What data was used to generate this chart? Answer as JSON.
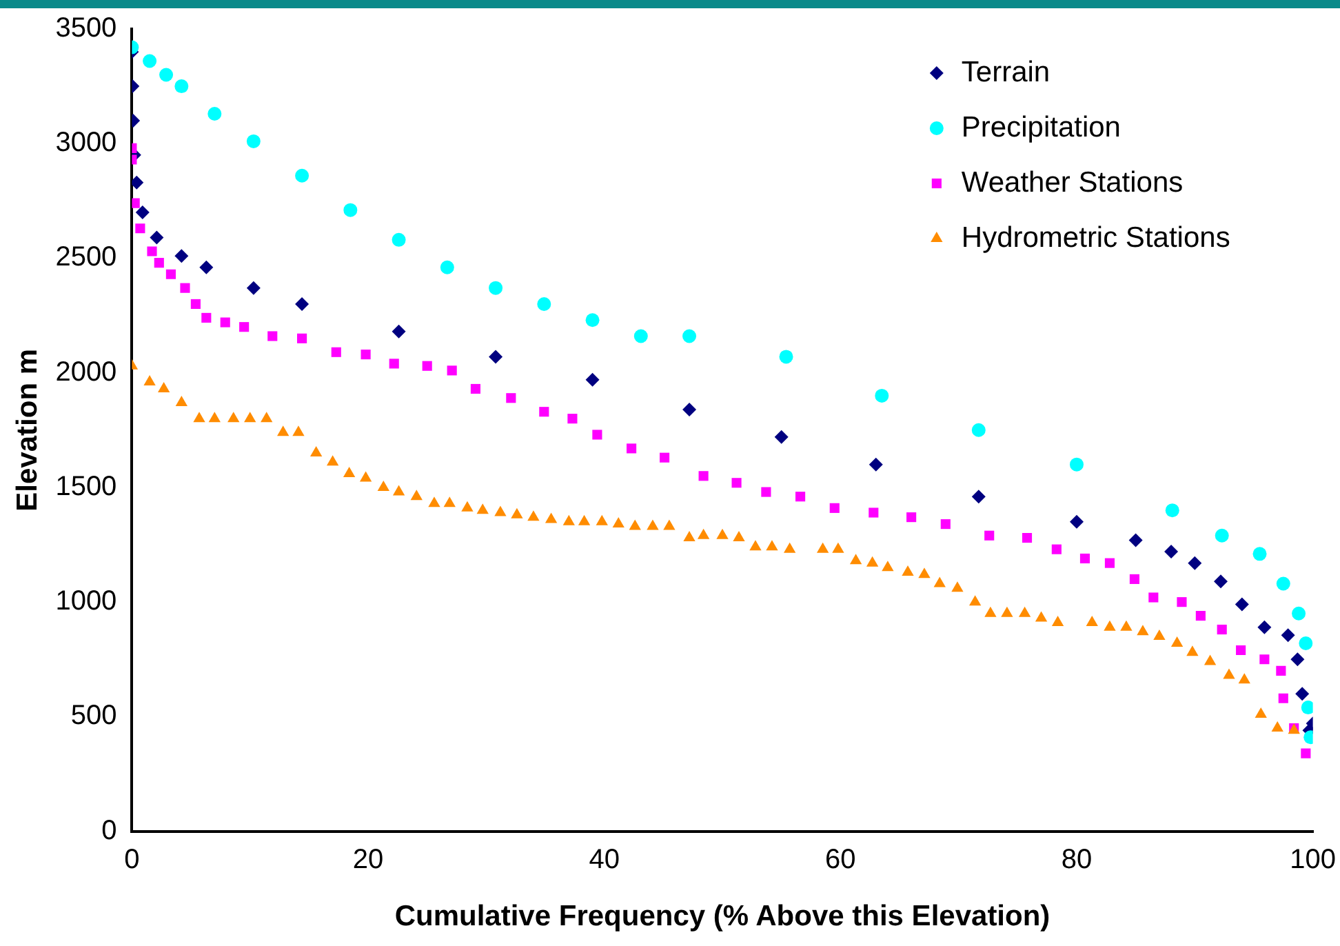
{
  "chart_data": {
    "type": "scatter",
    "xlabel": "Cumulative Frequency (% Above this Elevation)",
    "ylabel": "Elevation m",
    "xlim": [
      0,
      100
    ],
    "xticks": [
      0,
      20,
      40,
      60,
      80,
      100
    ],
    "ylim": [
      0,
      3500
    ],
    "yticks": [
      0,
      500,
      1000,
      1500,
      2000,
      2500,
      3000,
      3500
    ],
    "grid": false,
    "legend": "top right",
    "series": [
      {
        "name": "Terrain",
        "color": "#000080",
        "marker": "diamond",
        "x": [
          0,
          0.05,
          0.1,
          0.2,
          0.4,
          0.9,
          2.1,
          4.2,
          6.3,
          10.3,
          14.4,
          22.6,
          30.8,
          39,
          47.2,
          55,
          63,
          71.7,
          80,
          85,
          88,
          90,
          92.2,
          94,
          95.9,
          97.9,
          98.7,
          99.1,
          99.7,
          100
        ],
        "values": [
          3400,
          3250,
          3100,
          2950,
          2830,
          2700,
          2590,
          2510,
          2460,
          2370,
          2300,
          2180,
          2070,
          1970,
          1840,
          1720,
          1600,
          1460,
          1350,
          1270,
          1220,
          1170,
          1090,
          990,
          890,
          855,
          750,
          600,
          440,
          470
        ]
      },
      {
        "name": "Precipitation",
        "color": "#00ffff",
        "marker": "circle",
        "x": [
          0,
          1.5,
          2.9,
          4.2,
          7,
          10.3,
          14.4,
          18.5,
          22.6,
          26.7,
          30.8,
          34.9,
          39,
          43.1,
          47.2,
          55.4,
          63.5,
          71.7,
          80,
          88.1,
          92.3,
          95.5,
          97.5,
          98.8,
          99.4,
          99.6,
          99.8
        ],
        "values": [
          3420,
          3360,
          3300,
          3250,
          3130,
          3010,
          2860,
          2710,
          2580,
          2460,
          2370,
          2300,
          2230,
          2160,
          2160,
          2070,
          1900,
          1750,
          1600,
          1400,
          1290,
          1210,
          1080,
          950,
          820,
          540,
          410
        ]
      },
      {
        "name": "Weather Stations",
        "color": "#ff00ff",
        "marker": "square",
        "x": [
          0,
          0,
          0.25,
          0.7,
          1.7,
          2.3,
          3.3,
          4.5,
          5.4,
          6.3,
          7.9,
          9.5,
          11.9,
          14.4,
          17.3,
          19.8,
          22.2,
          25,
          27.1,
          29.1,
          32.1,
          34.9,
          37.3,
          39.4,
          42.3,
          45.1,
          48.4,
          51.2,
          53.7,
          56.6,
          59.5,
          62.8,
          66,
          68.9,
          72.6,
          75.8,
          78.3,
          80.7,
          82.8,
          84.9,
          86.5,
          88.9,
          90.5,
          92.3,
          93.9,
          95.9,
          97.3,
          97.5,
          98.4,
          99.4
        ],
        "values": [
          2980,
          2930,
          2740,
          2630,
          2530,
          2480,
          2430,
          2370,
          2300,
          2240,
          2220,
          2200,
          2160,
          2150,
          2090,
          2080,
          2040,
          2030,
          2010,
          1930,
          1890,
          1830,
          1800,
          1730,
          1670,
          1630,
          1550,
          1520,
          1480,
          1460,
          1410,
          1390,
          1370,
          1340,
          1290,
          1280,
          1230,
          1190,
          1170,
          1100,
          1020,
          1000,
          940,
          880,
          790,
          750,
          700,
          580,
          450,
          340
        ]
      },
      {
        "name": "Hydrometric Stations",
        "color": "#ff8c00",
        "marker": "triangle",
        "x": [
          0,
          1.5,
          2.7,
          4.2,
          5.7,
          7,
          8.6,
          10,
          11.4,
          12.8,
          14.1,
          15.6,
          17,
          18.4,
          19.8,
          21.3,
          22.6,
          24.1,
          25.6,
          26.9,
          28.4,
          29.7,
          31.2,
          32.6,
          34,
          35.5,
          37,
          38.3,
          39.8,
          41.2,
          42.6,
          44.1,
          45.5,
          47.2,
          48.4,
          50,
          51.4,
          52.8,
          54.2,
          55.7,
          58.5,
          59.8,
          61.3,
          62.7,
          64,
          65.7,
          67.1,
          68.4,
          69.9,
          71.4,
          72.7,
          74.1,
          75.6,
          77,
          78.4,
          81.3,
          82.8,
          84.2,
          85.6,
          87,
          88.5,
          89.8,
          91.3,
          92.9,
          94.2,
          95.6,
          97,
          98.4
        ],
        "values": [
          2030,
          1960,
          1930,
          1870,
          1800,
          1800,
          1800,
          1800,
          1800,
          1740,
          1740,
          1650,
          1610,
          1560,
          1540,
          1500,
          1480,
          1460,
          1430,
          1430,
          1410,
          1400,
          1390,
          1380,
          1370,
          1360,
          1350,
          1350,
          1350,
          1340,
          1330,
          1330,
          1330,
          1280,
          1290,
          1290,
          1280,
          1240,
          1240,
          1230,
          1230,
          1230,
          1180,
          1170,
          1150,
          1130,
          1120,
          1080,
          1060,
          1000,
          950,
          950,
          950,
          930,
          910,
          910,
          890,
          890,
          870,
          850,
          820,
          780,
          740,
          680,
          660,
          510,
          450,
          440
        ]
      }
    ]
  }
}
